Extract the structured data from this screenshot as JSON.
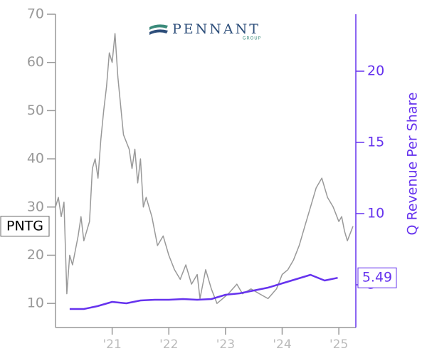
{
  "chart_data": {
    "type": "line",
    "logo": {
      "name": "PENNANT",
      "sub": "GROUP"
    },
    "y2_label": "Q Revenue Per Share",
    "xlim": [
      2020,
      2025.3
    ],
    "xticks": [
      {
        "value": 2021,
        "label": "'21"
      },
      {
        "value": 2022,
        "label": "'22"
      },
      {
        "value": 2023,
        "label": "'23"
      },
      {
        "value": 2024,
        "label": "'24"
      },
      {
        "value": 2025,
        "label": "'25"
      }
    ],
    "ylim": [
      5,
      70
    ],
    "yticks": [
      10,
      20,
      30,
      40,
      50,
      60,
      70
    ],
    "y2lim": [
      2,
      24
    ],
    "y2ticks": [
      5,
      10,
      15,
      20
    ],
    "series": [
      {
        "name": "PNTG",
        "color": "#999999",
        "x": [
          2020.0,
          2020.05,
          2020.1,
          2020.15,
          2020.2,
          2020.25,
          2020.3,
          2020.4,
          2020.45,
          2020.5,
          2020.6,
          2020.65,
          2020.7,
          2020.75,
          2020.8,
          2020.85,
          2020.9,
          2020.95,
          2021.0,
          2021.05,
          2021.1,
          2021.2,
          2021.3,
          2021.35,
          2021.4,
          2021.45,
          2021.5,
          2021.55,
          2021.6,
          2021.7,
          2021.8,
          2021.9,
          2022.0,
          2022.1,
          2022.2,
          2022.3,
          2022.4,
          2022.5,
          2022.55,
          2022.65,
          2022.75,
          2022.85,
          2022.95,
          2023.05,
          2023.2,
          2023.3,
          2023.45,
          2023.6,
          2023.75,
          2023.9,
          2024.0,
          2024.1,
          2024.2,
          2024.3,
          2024.4,
          2024.5,
          2024.6,
          2024.7,
          2024.8,
          2024.9,
          2025.0,
          2025.05,
          2025.1,
          2025.15,
          2025.25
        ],
        "values": [
          30,
          32,
          28,
          31,
          12,
          20,
          18,
          24,
          28,
          23,
          27,
          38,
          40,
          36,
          44,
          50,
          55,
          62,
          60,
          66,
          57,
          45,
          42,
          38,
          42,
          35,
          40,
          30,
          32,
          28,
          22,
          24,
          20,
          17,
          15,
          18,
          14,
          16,
          11,
          17,
          13,
          10,
          11,
          12,
          14,
          12,
          13,
          12,
          11,
          13,
          16,
          17,
          19,
          22,
          26,
          30,
          34,
          36,
          32,
          30,
          27,
          28,
          25,
          23,
          26
        ]
      },
      {
        "color": "#6633ee",
        "axis": "y2",
        "x": [
          2020.25,
          2020.5,
          2020.74,
          2021.0,
          2021.25,
          2021.5,
          2021.75,
          2022.0,
          2022.25,
          2022.5,
          2022.75,
          2023.0,
          2023.25,
          2023.5,
          2023.75,
          2024.0,
          2024.25,
          2024.5,
          2024.75,
          2024.98
        ],
        "values": [
          3.3,
          3.3,
          3.5,
          3.8,
          3.7,
          3.9,
          3.95,
          3.95,
          4.0,
          3.95,
          4.0,
          4.3,
          4.4,
          4.6,
          4.8,
          5.1,
          5.4,
          5.7,
          5.3,
          5.49
        ]
      }
    ]
  }
}
